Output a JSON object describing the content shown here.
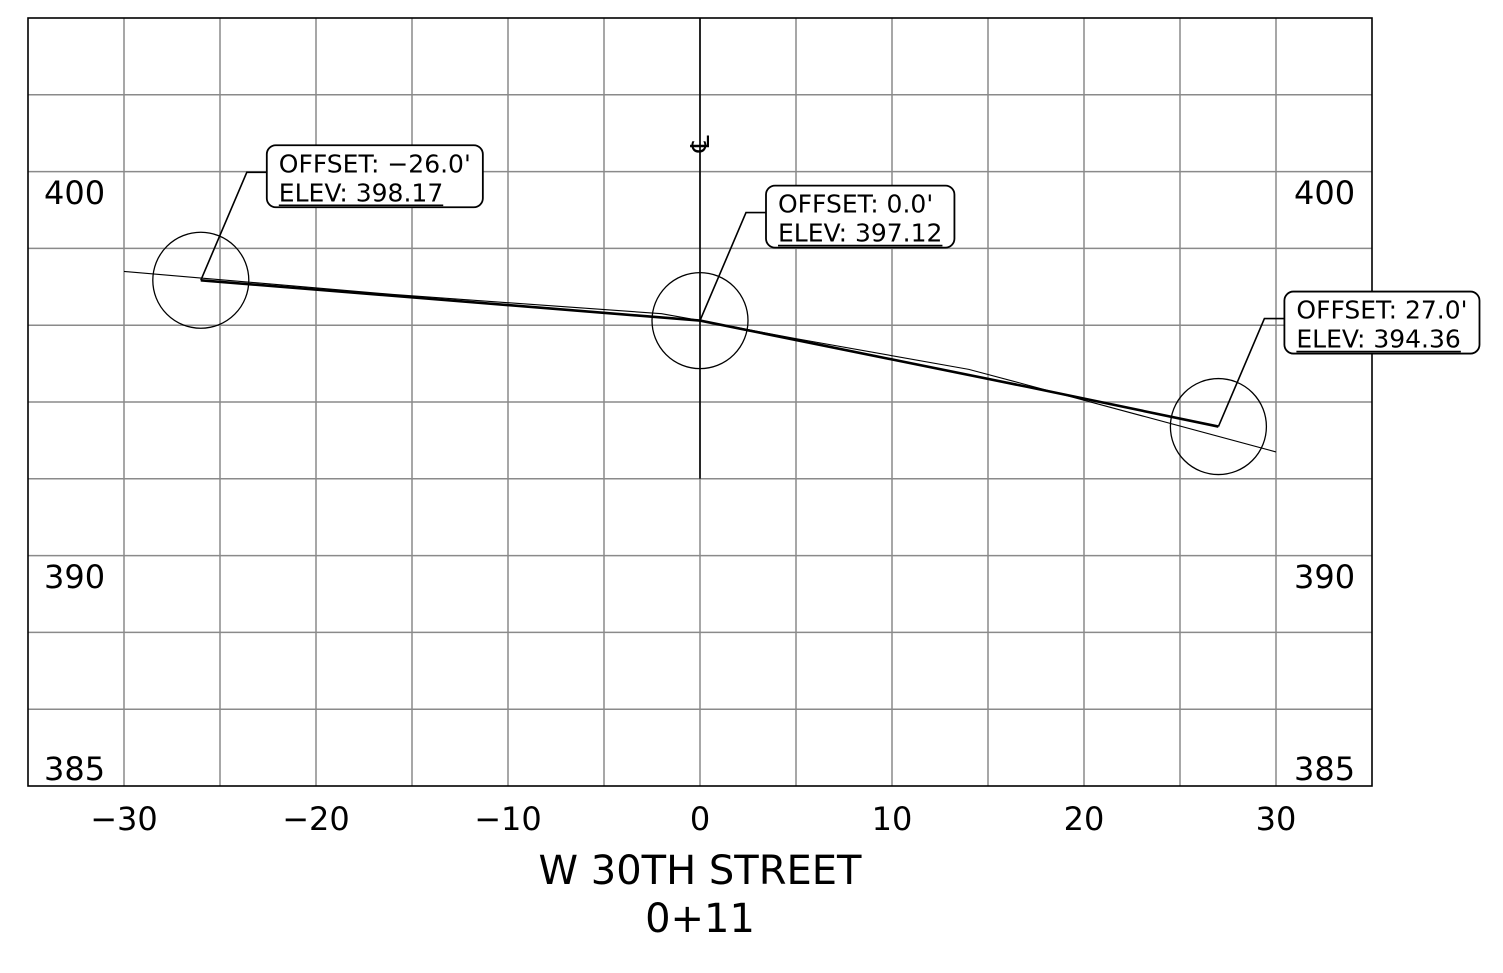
{
  "title": {
    "street": "W 30TH STREET",
    "station": "0+11"
  },
  "centerline_symbol": "℄",
  "chart_data": {
    "type": "line",
    "xlim": [
      -35,
      35
    ],
    "ylim": [
      385,
      405
    ],
    "x_ticks": [
      -30,
      -20,
      -10,
      0,
      10,
      20,
      30
    ],
    "x_tick_labels": [
      "−30",
      "−20",
      "−10",
      "0",
      "10",
      "20",
      "30"
    ],
    "y_tick_values": [
      400,
      390,
      385
    ],
    "y_tick_labels": [
      "400",
      "390",
      "385"
    ],
    "grid": true,
    "series": [
      {
        "style": "existing-ground-thin",
        "x": [
          -30,
          -16,
          -2,
          0,
          5,
          14,
          17,
          30
        ],
        "y": [
          398.4,
          397.8,
          397.3,
          397.12,
          396.65,
          395.85,
          395.45,
          393.7
        ]
      },
      {
        "style": "proposed-thick",
        "x": [
          -26,
          0,
          17,
          27
        ],
        "y": [
          398.17,
          397.12,
          395.4,
          394.36
        ]
      }
    ],
    "callouts": [
      {
        "offset": -26,
        "elev": 398.17,
        "line1": "OFFSET:  −26.0'",
        "line2": "ELEV:  398.17"
      },
      {
        "offset": 0,
        "elev": 397.12,
        "line1": "OFFSET:  0.0'",
        "line2": "ELEV:  397.12"
      },
      {
        "offset": 27,
        "elev": 394.36,
        "line1": "OFFSET:  27.0'",
        "line2": "ELEV:  394.36"
      }
    ]
  }
}
